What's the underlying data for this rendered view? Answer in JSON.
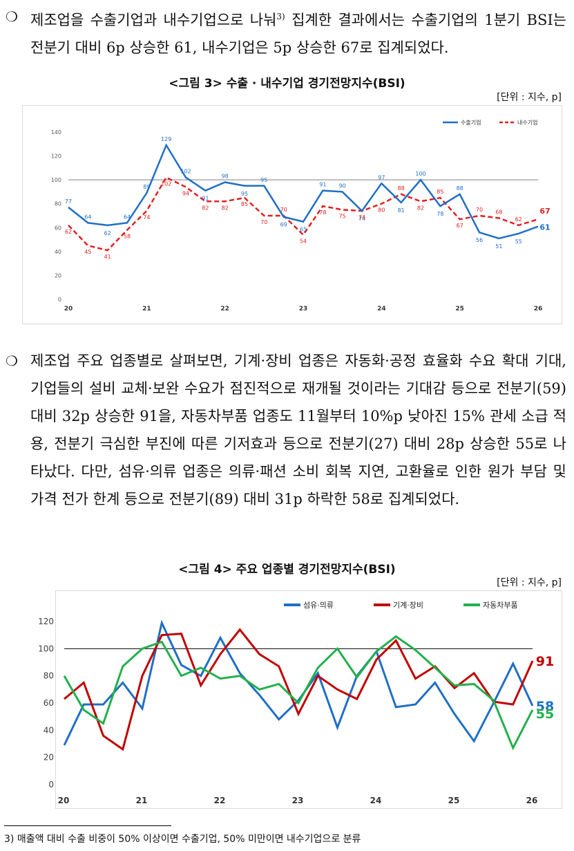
{
  "para1": {
    "bullet": "❍",
    "text_before": "제조업을 수출기업과 내수기업으로 나눠",
    "sup": "3)",
    "text_after": " 집계한 결과에서는 수출기업의 1분기 BSI는 전분기 대비 6p 상승한 61, 내수기업은 5p 상승한 67로 집계되었다."
  },
  "fig3": {
    "title": "<그림 3> 수출 · 내수기업 경기전망지수(BSI)",
    "unit": "[단위 : 지수, p]",
    "colors": {
      "export": "#1f6fc5",
      "domestic": "#e02020",
      "ref": "#7f7f7f"
    }
  },
  "para2": {
    "bullet": "❍",
    "text": "제조업 주요 업종별로 살펴보면, 기계·장비 업종은 자동화·공정 효율화 수요 확대 기대, 기업들의 설비 교체·보완 수요가 점진적으로 재개될 것이라는 기대감 등으로 전분기(59) 대비 32p 상승한 91을, 자동차부품 업종도 11월부터 10%p 낮아진 15% 관세 소급 적용, 전분기 극심한 부진에 따른 기저효과 등으로 전분기(27) 대비 28p 상승한 55로 나타났다. 다만, 섬유·의류 업종은 의류·패션 소비 회복 지연, 고환율로 인한 원가 부담 및 가격 전가 한계 등으로 전분기(89) 대비 31p 하락한 58로 집계되었다."
  },
  "fig4": {
    "title": "<그림 4> 주요 업종별 경기전망지수(BSI)",
    "unit": "[단위 : 지수, p]",
    "colors": {
      "textile": "#1f6fc5",
      "machinery": "#c00000",
      "auto": "#22b04c",
      "ref": "#000000"
    }
  },
  "footnote": "3) 매출액 대비 수출 비중이 50% 이상이면 수출기업, 50% 미만이면 내수기업으로 분류",
  "chart_data": [
    {
      "type": "line",
      "title": "",
      "x": [
        "20Q1",
        "20Q2",
        "20Q3",
        "20Q4",
        "21Q1",
        "21Q2",
        "21Q3",
        "21Q4",
        "22Q1",
        "22Q2",
        "22Q3",
        "22Q4",
        "23Q1",
        "23Q2",
        "23Q3",
        "23Q4",
        "24Q1",
        "24Q2",
        "24Q3",
        "24Q4",
        "25Q1",
        "25Q2",
        "25Q3",
        "25Q4",
        "26Q1"
      ],
      "x_tick_labels": [
        "20",
        "21",
        "22",
        "23",
        "24",
        "25",
        "26"
      ],
      "ylim": [
        0,
        140
      ],
      "y_ticks": [
        "0",
        "20",
        "40",
        "60",
        "80",
        "100",
        "120",
        "140"
      ],
      "reference_line": 100,
      "grid": false,
      "legend": "top-right",
      "series": [
        {
          "name": "수출기업",
          "style": "solid",
          "values": [
            77,
            64,
            62,
            64,
            89,
            129,
            102,
            91,
            98,
            95,
            95,
            69,
            65,
            91,
            90,
            74,
            97,
            81,
            100,
            78,
            88,
            56,
            51,
            55,
            61
          ],
          "labels": [
            "77",
            "64",
            "62",
            "64",
            "89",
            "129",
            "102",
            "91",
            "98",
            "95",
            "95",
            "69",
            "65",
            "91",
            "90",
            "74",
            "97",
            "81",
            "100",
            "78",
            "88",
            "56",
            "51",
            "55",
            "61"
          ]
        },
        {
          "name": "내수기업",
          "style": "dashed",
          "values": [
            62,
            45,
            41,
            58,
            74,
            102,
            94,
            82,
            82,
            85,
            70,
            70,
            54,
            78,
            75,
            74,
            80,
            88,
            82,
            85,
            67,
            70,
            68,
            62,
            67
          ],
          "labels": [
            "62",
            "45",
            "41",
            "58",
            "74",
            "102",
            "94",
            "82",
            "82",
            "85",
            "70",
            "70",
            "54",
            "78",
            "75",
            "74",
            "80",
            "88",
            "82",
            "85",
            "67",
            "70",
            "68",
            "62",
            "67"
          ]
        }
      ]
    },
    {
      "type": "line",
      "title": "",
      "x": [
        "20Q1",
        "20Q2",
        "20Q3",
        "20Q4",
        "21Q1",
        "21Q2",
        "21Q3",
        "21Q4",
        "22Q1",
        "22Q2",
        "22Q3",
        "22Q4",
        "23Q1",
        "23Q2",
        "23Q3",
        "23Q4",
        "24Q1",
        "24Q2",
        "24Q3",
        "24Q4",
        "25Q1",
        "25Q2",
        "25Q3",
        "25Q4",
        "26Q1"
      ],
      "x_tick_labels": [
        "20",
        "21",
        "22",
        "23",
        "24",
        "25",
        "26"
      ],
      "ylim": [
        0,
        120
      ],
      "y_ticks": [
        "0",
        "20",
        "40",
        "60",
        "80",
        "100",
        "120"
      ],
      "reference_line": 100,
      "grid": false,
      "legend": "top",
      "series": [
        {
          "name": "섬유·의류",
          "values": [
            29,
            59,
            59,
            75,
            56,
            119,
            88,
            80,
            108,
            82,
            66,
            48,
            62,
            82,
            42,
            80,
            98,
            57,
            59,
            75,
            52,
            32,
            60,
            89,
            58
          ],
          "end_label": "58"
        },
        {
          "name": "기계·장비",
          "values": [
            63,
            75,
            36,
            26,
            80,
            110,
            111,
            73,
            96,
            114,
            96,
            87,
            52,
            80,
            70,
            63,
            92,
            106,
            78,
            87,
            71,
            82,
            61,
            59,
            91
          ],
          "end_label": "91"
        },
        {
          "name": "자동차부품",
          "values": [
            80,
            55,
            45,
            87,
            100,
            105,
            80,
            86,
            78,
            80,
            70,
            74,
            60,
            86,
            100,
            79,
            98,
            109,
            99,
            86,
            73,
            74,
            62,
            27,
            55
          ],
          "end_label": "55"
        }
      ]
    }
  ]
}
